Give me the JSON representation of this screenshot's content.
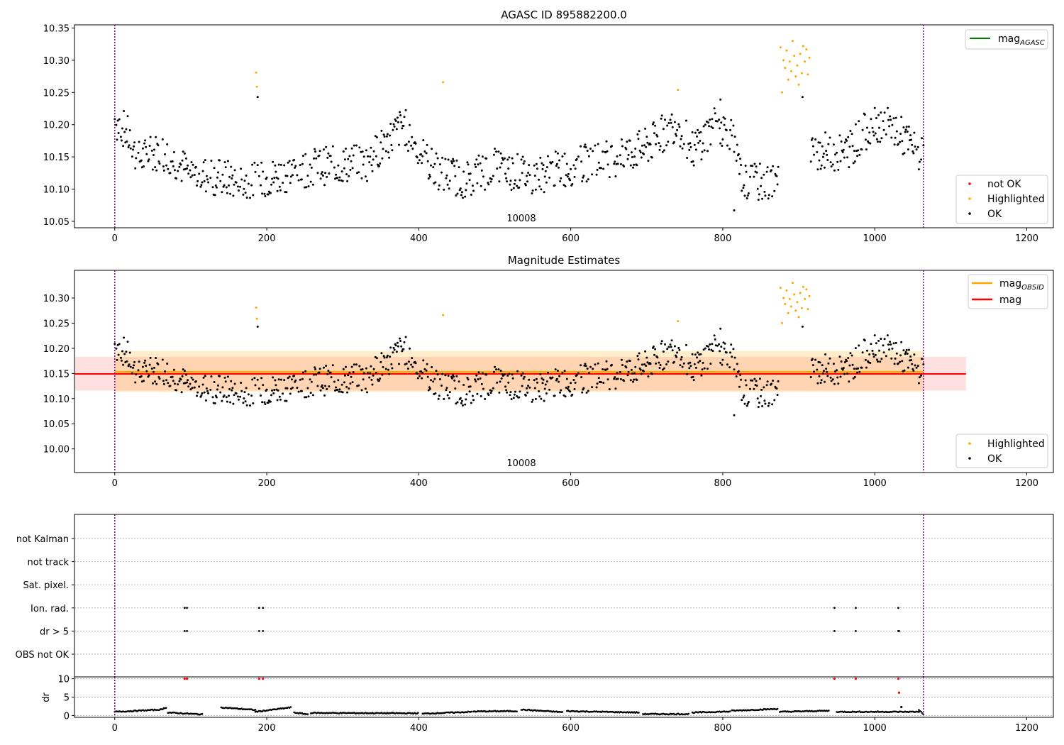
{
  "chart_data": [
    {
      "type": "scatter",
      "title": "AGASC ID 895882200.0",
      "xlim": [
        -53,
        1235
      ],
      "ylim": [
        10.04,
        10.355
      ],
      "x_ticks": [
        0,
        200,
        400,
        600,
        800,
        1000,
        1200
      ],
      "y_ticks": [
        10.05,
        10.1,
        10.15,
        10.2,
        10.25,
        10.3,
        10.35
      ],
      "obsid_label": "10008",
      "obs_bounds": [
        0,
        1064
      ],
      "legend_lines": [
        {
          "label": "mag",
          "sub": "AGASC",
          "color": "#008000"
        }
      ],
      "legend_points": [
        {
          "label": "not OK",
          "color": "#ff0000"
        },
        {
          "label": "Highlighted",
          "color": "#ffa500"
        },
        {
          "label": "OK",
          "color": "#000000"
        }
      ],
      "highlighted_points": [
        [
          186,
          10.281
        ],
        [
          187,
          10.259
        ],
        [
          432,
          10.266
        ],
        [
          741,
          10.254
        ],
        [
          876,
          10.32
        ],
        [
          878,
          10.25
        ],
        [
          880,
          10.3
        ],
        [
          882,
          10.288
        ],
        [
          884,
          10.315
        ],
        [
          886,
          10.27
        ],
        [
          888,
          10.298
        ],
        [
          890,
          10.283
        ],
        [
          892,
          10.33
        ],
        [
          894,
          10.307
        ],
        [
          896,
          10.275
        ],
        [
          898,
          10.292
        ],
        [
          900,
          10.262
        ],
        [
          902,
          10.31
        ],
        [
          904,
          10.28
        ],
        [
          906,
          10.322
        ],
        [
          908,
          10.298
        ],
        [
          910,
          10.317
        ],
        [
          912,
          10.278
        ],
        [
          914,
          10.304
        ]
      ]
    },
    {
      "type": "scatter",
      "title": "Magnitude Estimates",
      "xlim": [
        -53,
        1235
      ],
      "ylim": [
        9.953,
        10.355
      ],
      "x_ticks": [
        0,
        200,
        400,
        600,
        800,
        1000,
        1200
      ],
      "y_ticks": [
        10.0,
        10.05,
        10.1,
        10.15,
        10.2,
        10.25,
        10.3
      ],
      "obsid_label": "10008",
      "mag": {
        "value": 10.149,
        "err_low": 10.116,
        "err_high": 10.183,
        "x_range": [
          -53,
          1120
        ],
        "color": "#ff0000"
      },
      "mag_obsid": {
        "value": 10.153,
        "err_low": 10.113,
        "err_high": 10.195,
        "x_range": [
          0,
          1064
        ],
        "color": "#ffa500"
      },
      "legend_lines": [
        {
          "label": "mag",
          "sub": "OBSID",
          "color": "#ffa500"
        },
        {
          "label": "mag",
          "sub": "",
          "color": "#ff0000"
        }
      ],
      "legend_points": [
        {
          "label": "Highlighted",
          "color": "#ffa500"
        },
        {
          "label": "OK",
          "color": "#000000"
        }
      ]
    },
    {
      "type": "scatter",
      "title": "",
      "xlim": [
        -53,
        1235
      ],
      "x_ticks": [
        0,
        200,
        400,
        600,
        800,
        1000,
        1200
      ],
      "flag_labels": [
        "not Kalman",
        "not track",
        "Sat. pixel.",
        "Ion. rad.",
        "dr > 5",
        "OBS not OK"
      ],
      "flag_points": {
        "Ion. rad.": [
          92,
          95,
          190,
          195,
          947,
          975,
          1031
        ],
        "dr > 5": [
          92,
          95,
          190,
          195,
          947,
          975,
          1031,
          1032
        ]
      },
      "dr": {
        "ylabel": "dr",
        "ylim": [
          -0.5,
          10.5
        ],
        "y_ticks": [
          0,
          5,
          10
        ],
        "outliers": [
          [
            92,
            10
          ],
          [
            95,
            10
          ],
          [
            190,
            10
          ],
          [
            195,
            10
          ],
          [
            947,
            10
          ],
          [
            975,
            10
          ],
          [
            1031,
            10
          ],
          [
            1032,
            6.2
          ],
          [
            1035,
            2.3
          ]
        ]
      }
    }
  ]
}
